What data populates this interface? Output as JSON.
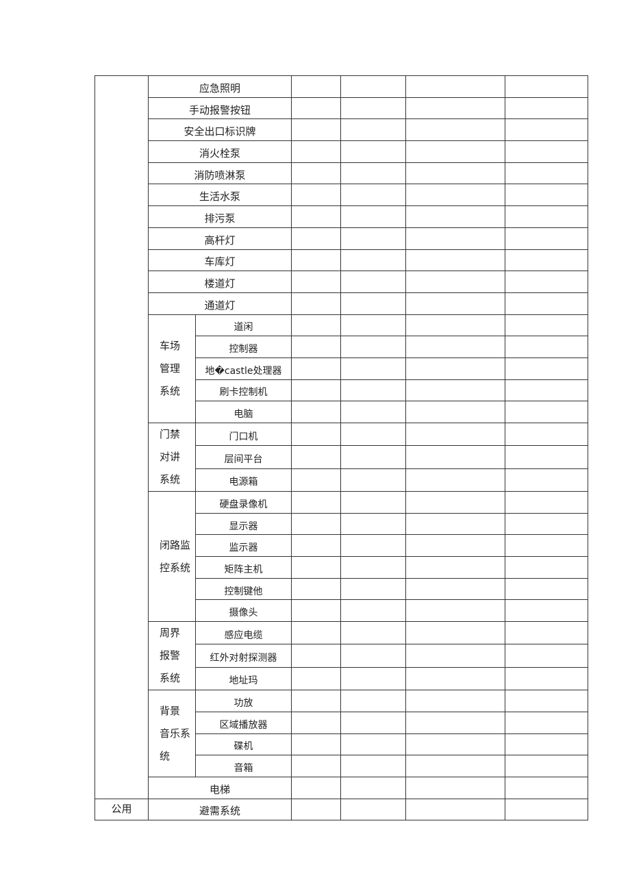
{
  "table": {
    "sections": [
      {
        "category": "",
        "entries": [
          {
            "label": "应急照明"
          },
          {
            "label": "手动报警按钮"
          },
          {
            "label": "安全出口标识牌"
          },
          {
            "label": "消火栓泵"
          },
          {
            "label": "消防喷淋泵"
          },
          {
            "label": "生活水泵"
          },
          {
            "label": "排污泵"
          },
          {
            "label": "高杆灯"
          },
          {
            "label": "车库灯"
          },
          {
            "label": "楼道灯"
          },
          {
            "label": "通道灯"
          },
          {
            "group": [
              "车场",
              "管理",
              "系统"
            ],
            "items": [
              "道闲",
              "控制器",
              "地�castle处理器",
              "刷卡控制机",
              "电脑"
            ]
          },
          {
            "group": [
              "门禁",
              "对讲",
              "系统"
            ],
            "items": [
              "门口机",
              "层间平台",
              "电源箱"
            ]
          },
          {
            "group": [
              "闭路监",
              "控系统"
            ],
            "items": [
              "硬盘录像机",
              "显示器",
              "监示器",
              "矩阵主机",
              "控制键他",
              "摄像头"
            ]
          },
          {
            "group": [
              "周界",
              "报警",
              "系统"
            ],
            "items": [
              "感应电缆",
              "红外对射探测器",
              "地址玛"
            ]
          },
          {
            "group": [
              "背景",
              "音乐系",
              "统"
            ],
            "items": [
              "功放",
              "区域播放器",
              "碟机",
              "音箱"
            ]
          },
          {
            "label": "电梯"
          }
        ]
      },
      {
        "category": "公用",
        "entries": [
          {
            "label": "避需系统"
          }
        ]
      }
    ]
  }
}
